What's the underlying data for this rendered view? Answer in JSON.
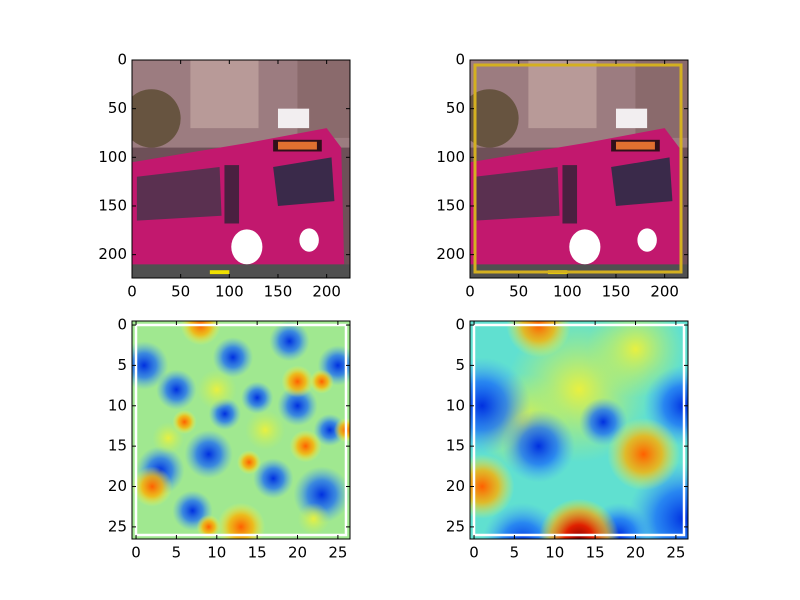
{
  "chart_data": [
    {
      "type": "image",
      "xlim": [
        0,
        224
      ],
      "ylim": [
        224,
        0
      ],
      "xticks": [
        0,
        50,
        100,
        150,
        200
      ],
      "yticks": [
        0,
        50,
        100,
        150,
        200
      ]
    },
    {
      "type": "image-boxed",
      "xlim": [
        0,
        224
      ],
      "ylim": [
        224,
        0
      ],
      "xticks": [
        0,
        50,
        100,
        150,
        200
      ],
      "yticks": [
        0,
        50,
        100,
        150,
        200
      ]
    },
    {
      "type": "heatmap-coarse",
      "xlim": [
        -0.5,
        26.5
      ],
      "ylim": [
        26.5,
        -0.5
      ],
      "xticks": [
        0,
        5,
        10,
        15,
        20,
        25
      ],
      "yticks": [
        0,
        5,
        10,
        15,
        20,
        25
      ]
    },
    {
      "type": "heatmap-smooth",
      "xlim": [
        -0.5,
        26.5
      ],
      "ylim": [
        26.5,
        -0.5
      ],
      "xticks": [
        0,
        5,
        10,
        15,
        20,
        25
      ],
      "yticks": [
        0,
        5,
        10,
        15,
        20,
        25
      ]
    }
  ]
}
